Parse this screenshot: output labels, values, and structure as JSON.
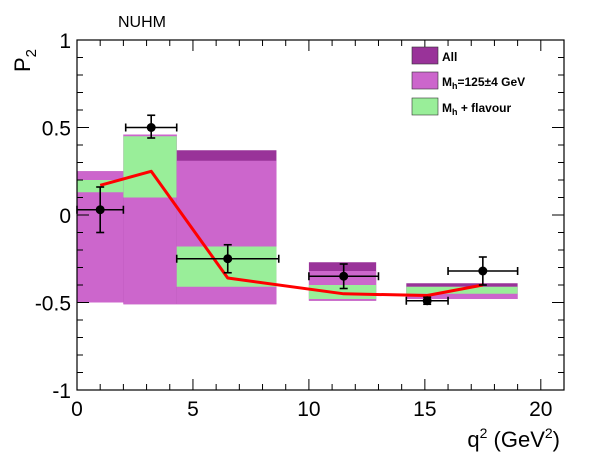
{
  "chart_data": {
    "type": "bar",
    "annotation": "NUHM",
    "xlabel": {
      "main": "q",
      "sup": "2",
      "unit_open": " (GeV",
      "unit_sup": "2",
      "unit_close": ")"
    },
    "ylabel": {
      "main": "P",
      "sub": "2"
    },
    "xlim": [
      0,
      21
    ],
    "ylim": [
      -1,
      1
    ],
    "x_ticks": [
      0,
      5,
      10,
      15,
      20
    ],
    "x_tick_labels": [
      "0",
      "5",
      "10",
      "15",
      "20"
    ],
    "y_ticks": [
      -1,
      -0.5,
      0,
      0.5,
      1
    ],
    "y_tick_labels": [
      "-1",
      "-0.5",
      "0",
      "0.5",
      "1"
    ],
    "grid": false,
    "legend_position": "top-right",
    "colors": {
      "all": "#993399",
      "mh": "#cc66cc",
      "flavour": "#99ee99",
      "curve": "#ff0000",
      "points": "#000000"
    },
    "legend": [
      {
        "key": "all",
        "main": "All",
        "sub": "",
        "rest": ""
      },
      {
        "key": "mh",
        "main": "M",
        "sub": "h",
        "rest": "=125±4 GeV"
      },
      {
        "key": "flavour",
        "main": "M",
        "sub": "h",
        "rest": " + flavour"
      }
    ],
    "bins": [
      {
        "x0": 0.0,
        "x1": 2.0,
        "all": [
          -0.5,
          0.25
        ],
        "mh": [
          -0.5,
          0.25
        ],
        "flavour": [
          0.13,
          0.2
        ]
      },
      {
        "x0": 2.0,
        "x1": 4.3,
        "all": [
          -0.51,
          0.46
        ],
        "mh": [
          -0.51,
          0.46
        ],
        "flavour": [
          0.1,
          0.45
        ]
      },
      {
        "x0": 4.3,
        "x1": 8.6,
        "all": [
          -0.51,
          0.37
        ],
        "mh": [
          -0.51,
          0.31
        ],
        "flavour": [
          -0.41,
          -0.18
        ]
      },
      {
        "x0": 10.0,
        "x1": 12.9,
        "all": [
          -0.49,
          -0.27
        ],
        "mh": [
          -0.49,
          -0.32
        ],
        "flavour": [
          -0.48,
          -0.4
        ]
      },
      {
        "x0": 14.2,
        "x1": 19.0,
        "all": [
          -0.48,
          -0.39
        ],
        "mh": [
          -0.48,
          -0.41
        ],
        "flavour": [
          -0.45,
          -0.41
        ]
      }
    ],
    "points": [
      {
        "x": 1.0,
        "y": 0.03,
        "xerr": 1.0,
        "yerr_low": 0.13,
        "yerr_high": 0.13
      },
      {
        "x": 3.2,
        "y": 0.5,
        "xerr": 1.1,
        "yerr_low": 0.06,
        "yerr_high": 0.07
      },
      {
        "x": 6.5,
        "y": -0.25,
        "xerr": 2.2,
        "yerr_low": 0.08,
        "yerr_high": 0.08
      },
      {
        "x": 11.5,
        "y": -0.35,
        "xerr": 1.5,
        "yerr_low": 0.07,
        "yerr_high": 0.07
      },
      {
        "x": 15.1,
        "y": -0.49,
        "xerr": 0.9,
        "yerr_low": 0.02,
        "yerr_high": 0.02
      },
      {
        "x": 17.5,
        "y": -0.32,
        "xerr": 1.5,
        "yerr_low": 0.08,
        "yerr_high": 0.08
      }
    ],
    "curve": {
      "x": [
        1.0,
        3.2,
        6.5,
        11.5,
        15.1,
        17.5
      ],
      "y": [
        0.17,
        0.25,
        -0.36,
        -0.45,
        -0.46,
        -0.4
      ]
    }
  }
}
